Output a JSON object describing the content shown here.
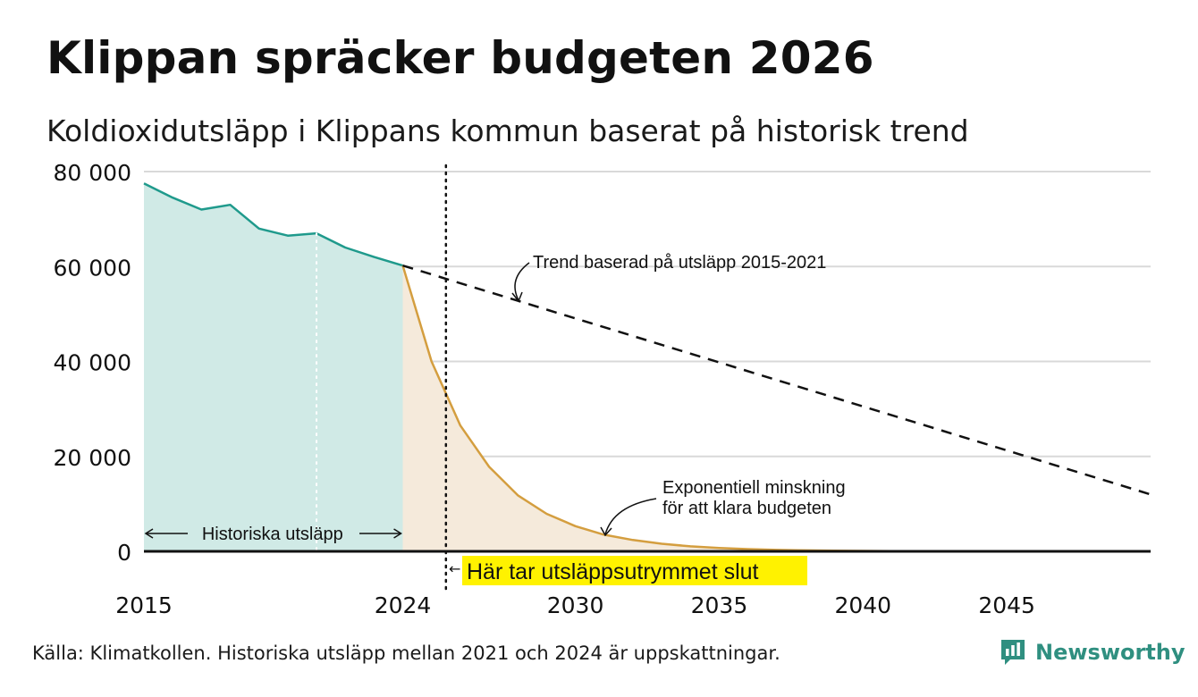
{
  "title": "Klippan spräcker budgeten 2026",
  "subtitle": "Koldioxidutsläpp i Klippans kommun baserat på historisk trend",
  "source": "Källa: Klimatkollen. Historiska utsläpp mellan 2021 och 2024 är uppskattningar.",
  "brand": {
    "name": "Newsworthy",
    "logo_icon": "newsworthy-logo-icon",
    "color": "#2f8f80"
  },
  "chart_data": {
    "type": "area",
    "title": "Klippan spräcker budgeten 2026",
    "xlim": [
      2015,
      2050
    ],
    "ylim": [
      0,
      80000
    ],
    "y_ticks": [
      0,
      20000,
      40000,
      60000,
      80000
    ],
    "y_tick_labels": [
      "0",
      "20 000",
      "40 000",
      "60 000",
      "80 000"
    ],
    "x_ticks": [
      2015,
      2024,
      2030,
      2035,
      2040,
      2045
    ],
    "x_tick_labels": [
      "2015",
      "2024",
      "2030",
      "2035",
      "2040",
      "2045"
    ],
    "grid": true,
    "series": [
      {
        "name": "Historiska utsläpp",
        "color": "#1f9a8c",
        "fill": "#d0eae6",
        "x": [
          2015,
          2016,
          2017,
          2018,
          2019,
          2020,
          2021,
          2022,
          2023,
          2024
        ],
        "values": [
          77500,
          74500,
          72000,
          73000,
          68000,
          66500,
          67000,
          64000,
          62000,
          60200
        ]
      },
      {
        "name": "Exponentiell minskning för att klara budgeten",
        "color": "#d49e3f",
        "fill": "#f5eadb",
        "x": [
          2024,
          2025,
          2026,
          2027,
          2028,
          2029,
          2030,
          2031,
          2032,
          2033,
          2034,
          2035,
          2036,
          2037,
          2038,
          2039,
          2040,
          2041,
          2042,
          2043,
          2044,
          2045,
          2046,
          2047,
          2048,
          2049,
          2050
        ],
        "values": [
          60200,
          40000,
          26500,
          17800,
          11800,
          7900,
          5300,
          3500,
          2400,
          1600,
          1050,
          700,
          470,
          310,
          210,
          140,
          95,
          60,
          40,
          27,
          18,
          12,
          8,
          5,
          3,
          2,
          1
        ]
      },
      {
        "name": "Trend baserad på utsläpp 2015-2021",
        "color": "#111111",
        "style": "dashed",
        "x": [
          2024,
          2050
        ],
        "values": [
          60200,
          12000
        ]
      }
    ],
    "vertical_markers": [
      {
        "x": 2021,
        "style": "dotted",
        "color": "#ffffff"
      },
      {
        "x": 2025.5,
        "style": "dotted",
        "color": "#111111"
      }
    ],
    "annotations": {
      "trend_label": "Trend baserad på utsläpp 2015-2021",
      "exp_label_line1": "Exponentiell minskning",
      "exp_label_line2": "för att klara budgeten",
      "historic_label": "Historiska utsläpp",
      "budget_end_label": "Här tar utsläppsutrymmet slut",
      "budget_end_arrow": "←",
      "highlight_color": "#fff200"
    }
  }
}
